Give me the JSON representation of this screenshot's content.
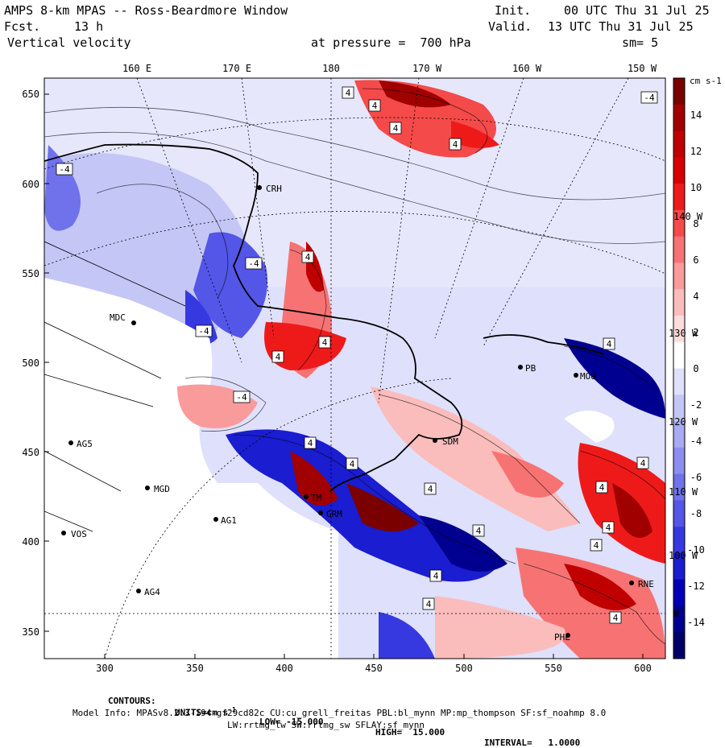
{
  "header": {
    "title": "AMPS 8-km MPAS -- Ross-Beardmore Window",
    "fcst_label": "Fcst.",
    "fcst_value": "13 h",
    "field": "Vertical velocity",
    "init_label": "Init.",
    "init_value": "00 UTC Thu 31 Jul 25",
    "valid_label": "Valid.",
    "valid_value": "13 UTC Thu 31 Jul 25",
    "level": "at pressure =  700 hPa",
    "smoothing": "sm= 5"
  },
  "axes": {
    "top_ticks": [
      "160 E",
      "170 E",
      "180",
      "170 W",
      "160 W",
      "150 W"
    ],
    "left_ticks": [
      "650",
      "600",
      "550",
      "500",
      "450",
      "400",
      "350"
    ],
    "bottom_ticks": [
      "300",
      "350",
      "400",
      "450",
      "500",
      "550",
      "600"
    ],
    "right_lon_labels": [
      "140 W",
      "130 W",
      "120 W",
      "110 W",
      "100 W",
      "W"
    ]
  },
  "colorbar": {
    "units": "cm s-1",
    "labels": [
      "14",
      "12",
      "10",
      "8",
      "6",
      "4",
      "2",
      "0",
      "-2",
      "-4",
      "-6",
      "-8",
      "-10",
      "-12",
      "-14"
    ],
    "colors": [
      "#7a0000",
      "#a00000",
      "#c00000",
      "#d80000",
      "#ee1a1a",
      "#f44a4a",
      "#f77373",
      "#f99b9b",
      "#fbbcbc",
      "#fddcdc",
      "#ffffff",
      "#dfe0fb",
      "#c4c6f6",
      "#a8aaf2",
      "#8b8eee",
      "#6f72ea",
      "#5356e6",
      "#3639e0",
      "#1a1dd0",
      "#0000b8",
      "#000090",
      "#000068"
    ]
  },
  "stations": [
    {
      "code": "CRH"
    },
    {
      "code": "MDC"
    },
    {
      "code": "AG5"
    },
    {
      "code": "MGD"
    },
    {
      "code": "AG1"
    },
    {
      "code": "VOS"
    },
    {
      "code": "AG4"
    },
    {
      "code": "SDM"
    },
    {
      "code": "GRM"
    },
    {
      "code": "MOU"
    },
    {
      "code": "RNE"
    },
    {
      "code": "PHL"
    },
    {
      "code": "PB"
    },
    {
      "code": "TM"
    }
  ],
  "footer": {
    "contours_label": "CONTOURS:",
    "units_label": "UNITS=cm s",
    "units_exp": "-1",
    "low": "LOW= -15.000",
    "high": "HIGH=  15.000",
    "interval": "INTERVAL=   1.0000",
    "model_info": "Model Info: MPASv8.2.3-194-gf29cd82c CU:cu_grell_freitas PBL:bl_mynn MP:mp_thompson SF:sf_noahmp 8.0",
    "model_info2": "LW:rrtmg_lw SW:rrtmg_sw SFLAY:sf_mynn"
  }
}
